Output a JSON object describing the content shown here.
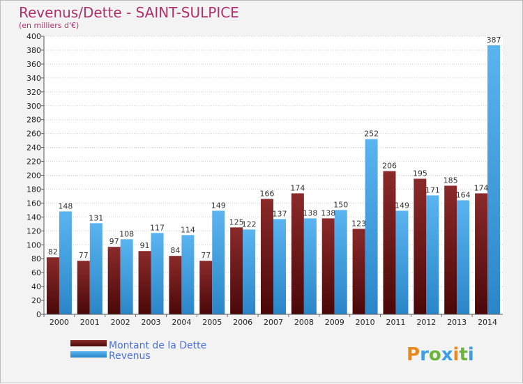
{
  "chart_data": {
    "type": "bar",
    "title": "Revenus/Dette - SAINT-SULPICE",
    "subtitle": "(en milliers d'€)",
    "categories": [
      "2000",
      "2001",
      "2002",
      "2003",
      "2004",
      "2005",
      "2006",
      "2007",
      "2008",
      "2009",
      "2010",
      "2011",
      "2012",
      "2013",
      "2014"
    ],
    "series": [
      {
        "name": "Montant de la Dette",
        "color": "#7a1c1c",
        "values": [
          82,
          77,
          97,
          91,
          84,
          77,
          125,
          166,
          174,
          138,
          123,
          206,
          195,
          185,
          174
        ]
      },
      {
        "name": "Revenus",
        "color": "#3d9ee4",
        "values": [
          148,
          131,
          108,
          117,
          114,
          149,
          122,
          137,
          138,
          150,
          252,
          149,
          171,
          164,
          387
        ]
      }
    ],
    "ylim": [
      0,
      400
    ],
    "ytick_step": 20,
    "grid": true,
    "legend_position": "bottom-left"
  },
  "logo": {
    "text": "Proxiti",
    "letters": [
      "P",
      "r",
      "o",
      "x",
      "i",
      "t",
      "i"
    ],
    "colors": [
      "#e6891f",
      "#3d9ee4",
      "#6bb33a",
      "#3d9ee4",
      "#e6891f",
      "#6bb33a",
      "#3d9ee4"
    ]
  }
}
